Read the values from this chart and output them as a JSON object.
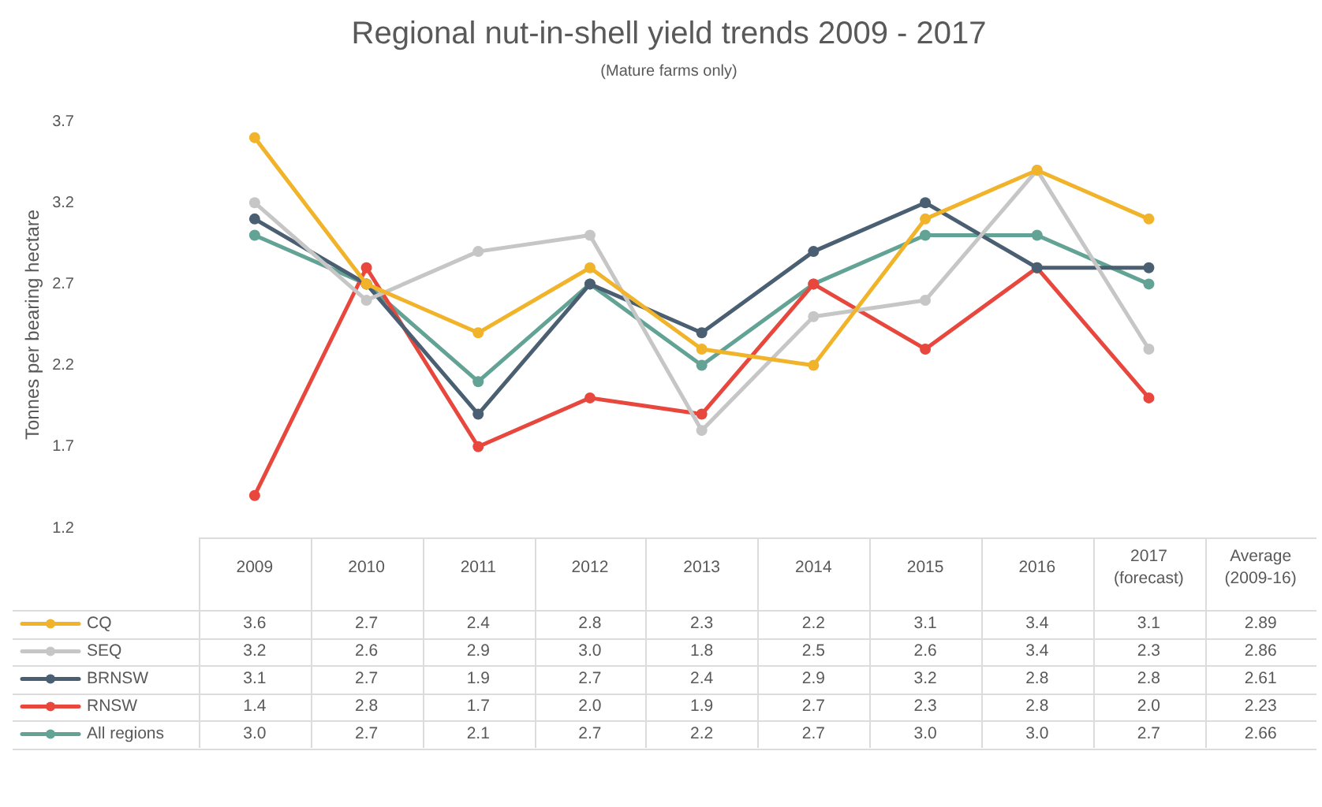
{
  "chart_data": {
    "type": "line",
    "title": "Regional nut-in-shell yield trends 2009 - 2017",
    "subtitle": "(Mature farms only)",
    "ylabel": "Tonnes per bearing hectare",
    "categories": [
      "2009",
      "2010",
      "2011",
      "2012",
      "2013",
      "2014",
      "2015",
      "2016",
      "2017 (forecast)",
      "Average (2009-16)"
    ],
    "series": [
      {
        "name": "CQ",
        "color": "#f1b32a",
        "values": [
          3.6,
          2.7,
          2.4,
          2.8,
          2.3,
          2.2,
          3.1,
          3.4,
          3.1,
          null
        ],
        "value_labels": [
          "3.6",
          "2.7",
          "2.4",
          "2.8",
          "2.3",
          "2.2",
          "3.1",
          "3.4",
          "3.1",
          "2.89"
        ]
      },
      {
        "name": "SEQ",
        "color": "#c6c6c6",
        "values": [
          3.2,
          2.6,
          2.9,
          3.0,
          1.8,
          2.5,
          2.6,
          3.4,
          2.3,
          null
        ],
        "value_labels": [
          "3.2",
          "2.6",
          "2.9",
          "3.0",
          "1.8",
          "2.5",
          "2.6",
          "3.4",
          "2.3",
          "2.86"
        ]
      },
      {
        "name": "BRNSW",
        "color": "#4a5f71",
        "values": [
          3.1,
          2.7,
          1.9,
          2.7,
          2.4,
          2.9,
          3.2,
          2.8,
          2.8,
          null
        ],
        "value_labels": [
          "3.1",
          "2.7",
          "1.9",
          "2.7",
          "2.4",
          "2.9",
          "3.2",
          "2.8",
          "2.8",
          "2.61"
        ]
      },
      {
        "name": "RNSW",
        "color": "#e8473e",
        "values": [
          1.4,
          2.8,
          1.7,
          2.0,
          1.9,
          2.7,
          2.3,
          2.8,
          2.0,
          null
        ],
        "value_labels": [
          "1.4",
          "2.8",
          "1.7",
          "2.0",
          "1.9",
          "2.7",
          "2.3",
          "2.8",
          "2.0",
          "2.23"
        ]
      },
      {
        "name": "All regions",
        "color": "#62a396",
        "values": [
          3.0,
          2.7,
          2.1,
          2.7,
          2.2,
          2.7,
          3.0,
          3.0,
          2.7,
          null
        ],
        "value_labels": [
          "3.0",
          "2.7",
          "2.1",
          "2.7",
          "2.2",
          "2.7",
          "3.0",
          "3.0",
          "2.7",
          "2.66"
        ]
      }
    ],
    "ylim": [
      1.2,
      3.7
    ],
    "yticks": [
      1.2,
      1.7,
      2.2,
      2.7,
      3.2,
      3.7
    ],
    "marker": "circle",
    "legend": "bottom"
  }
}
